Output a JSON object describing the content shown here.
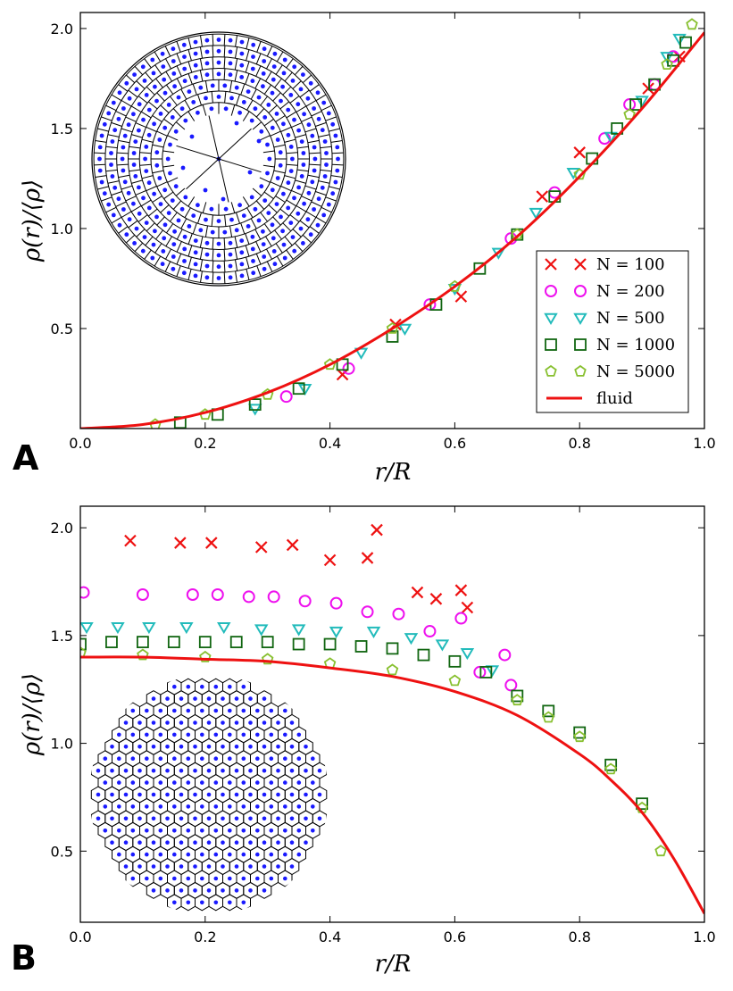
{
  "chart_data": [
    {
      "panel": "A",
      "type": "scatter",
      "xlabel": "r/R",
      "ylabel": "ρ(r)/⟨ρ⟩",
      "xlim": [
        0.0,
        1.0
      ],
      "ylim": [
        0.0,
        2.08
      ],
      "xticks": [
        "0.0",
        "0.2",
        "0.4",
        "0.6",
        "0.8",
        "1.0"
      ],
      "yticks": [
        "0.5",
        "1.0",
        "1.5",
        "2.0"
      ],
      "legend_location": "lower-right",
      "legend": [
        {
          "label": "N = 100",
          "marker": "x",
          "color": "#ee1111"
        },
        {
          "label": "N = 200",
          "marker": "circle",
          "color": "#ee11ee"
        },
        {
          "label": "N = 500",
          "marker": "triangle-down",
          "color": "#22bbbb"
        },
        {
          "label": "N = 1000",
          "marker": "square",
          "color": "#116611"
        },
        {
          "label": "N = 5000",
          "marker": "pentagon",
          "color": "#88c030"
        },
        {
          "label": "fluid",
          "marker": "line",
          "color": "#ee1111"
        }
      ],
      "inset": "Voronoi tessellation of a disk packing (curved rings)",
      "series": [
        {
          "name": "N = 100",
          "x": [
            0.42,
            0.505,
            0.61,
            0.74,
            0.8,
            0.91,
            0.96
          ],
          "y": [
            0.27,
            0.52,
            0.66,
            1.16,
            1.38,
            1.7,
            1.86
          ]
        },
        {
          "name": "N = 200",
          "x": [
            0.33,
            0.43,
            0.56,
            0.69,
            0.76,
            0.84,
            0.88,
            0.92,
            0.95
          ],
          "y": [
            0.16,
            0.3,
            0.62,
            0.95,
            1.18,
            1.45,
            1.62,
            1.72,
            1.86
          ]
        },
        {
          "name": "N = 500",
          "x": [
            0.28,
            0.36,
            0.45,
            0.52,
            0.6,
            0.67,
            0.73,
            0.79,
            0.85,
            0.9,
            0.94,
            0.96
          ],
          "y": [
            0.1,
            0.2,
            0.38,
            0.5,
            0.7,
            0.88,
            1.08,
            1.28,
            1.46,
            1.64,
            1.86,
            1.95
          ]
        },
        {
          "name": "N = 1000",
          "x": [
            0.16,
            0.22,
            0.28,
            0.35,
            0.42,
            0.5,
            0.57,
            0.64,
            0.7,
            0.76,
            0.82,
            0.86,
            0.89,
            0.92,
            0.95,
            0.97
          ],
          "y": [
            0.03,
            0.07,
            0.12,
            0.2,
            0.32,
            0.46,
            0.62,
            0.8,
            0.97,
            1.16,
            1.35,
            1.5,
            1.62,
            1.72,
            1.84,
            1.93
          ]
        },
        {
          "name": "N = 5000",
          "x": [
            0.12,
            0.2,
            0.3,
            0.4,
            0.5,
            0.6,
            0.7,
            0.8,
            0.88,
            0.94,
            0.98
          ],
          "y": [
            0.02,
            0.07,
            0.17,
            0.32,
            0.5,
            0.71,
            0.97,
            1.27,
            1.57,
            1.82,
            2.02
          ]
        },
        {
          "name": "fluid",
          "x": [
            0.0,
            0.1,
            0.2,
            0.3,
            0.4,
            0.5,
            0.6,
            0.7,
            0.8,
            0.9,
            1.0
          ],
          "y": [
            0.0,
            0.02,
            0.08,
            0.18,
            0.32,
            0.5,
            0.71,
            0.96,
            1.26,
            1.6,
            1.98
          ]
        }
      ]
    },
    {
      "panel": "B",
      "type": "scatter",
      "xlabel": "r/R",
      "ylabel": "ρ(r)/⟨ρ⟩",
      "xlim": [
        0.0,
        1.0
      ],
      "ylim": [
        0.17,
        2.1
      ],
      "xticks": [
        "0.0",
        "0.2",
        "0.4",
        "0.6",
        "0.8",
        "1.0"
      ],
      "yticks": [
        "0.5",
        "1.0",
        "1.5",
        "2.0"
      ],
      "inset": "Voronoi tessellation of a disk packing (hexagonal)",
      "series": [
        {
          "name": "N = 100",
          "x": [
            0.08,
            0.16,
            0.21,
            0.29,
            0.34,
            0.4,
            0.46,
            0.475,
            0.54,
            0.57,
            0.61,
            0.62
          ],
          "y": [
            1.94,
            1.93,
            1.93,
            1.91,
            1.92,
            1.85,
            1.86,
            1.99,
            1.7,
            1.67,
            1.71,
            1.63
          ]
        },
        {
          "name": "N = 200",
          "x": [
            0.005,
            0.1,
            0.18,
            0.22,
            0.27,
            0.31,
            0.36,
            0.41,
            0.46,
            0.51,
            0.56,
            0.61,
            0.64,
            0.68,
            0.69
          ],
          "y": [
            1.7,
            1.69,
            1.69,
            1.69,
            1.68,
            1.68,
            1.66,
            1.65,
            1.61,
            1.6,
            1.52,
            1.58,
            1.33,
            1.41,
            1.27
          ]
        },
        {
          "name": "N = 500",
          "x": [
            0.01,
            0.06,
            0.11,
            0.17,
            0.23,
            0.29,
            0.35,
            0.41,
            0.47,
            0.53,
            0.58,
            0.62,
            0.66
          ],
          "y": [
            1.54,
            1.54,
            1.54,
            1.54,
            1.54,
            1.53,
            1.53,
            1.52,
            1.52,
            1.49,
            1.46,
            1.42,
            1.34
          ]
        },
        {
          "name": "N = 1000",
          "x": [
            0.0,
            0.05,
            0.1,
            0.15,
            0.2,
            0.25,
            0.3,
            0.35,
            0.4,
            0.45,
            0.5,
            0.55,
            0.6,
            0.65,
            0.7,
            0.75,
            0.8,
            0.85,
            0.9
          ],
          "y": [
            1.46,
            1.47,
            1.47,
            1.47,
            1.47,
            1.47,
            1.47,
            1.46,
            1.46,
            1.45,
            1.44,
            1.41,
            1.38,
            1.33,
            1.22,
            1.15,
            1.05,
            0.9,
            0.72
          ]
        },
        {
          "name": "N = 5000",
          "x": [
            0.0,
            0.1,
            0.2,
            0.3,
            0.4,
            0.5,
            0.6,
            0.7,
            0.75,
            0.8,
            0.85,
            0.9,
            0.93
          ],
          "y": [
            1.42,
            1.41,
            1.4,
            1.39,
            1.37,
            1.34,
            1.29,
            1.2,
            1.12,
            1.03,
            0.88,
            0.7,
            0.5
          ]
        },
        {
          "name": "fluid",
          "x": [
            0.0,
            0.1,
            0.2,
            0.3,
            0.4,
            0.5,
            0.6,
            0.7,
            0.8,
            0.85,
            0.9,
            0.95,
            1.0
          ],
          "y": [
            1.4,
            1.4,
            1.39,
            1.38,
            1.35,
            1.31,
            1.24,
            1.13,
            0.95,
            0.83,
            0.68,
            0.47,
            0.21
          ]
        }
      ]
    }
  ]
}
